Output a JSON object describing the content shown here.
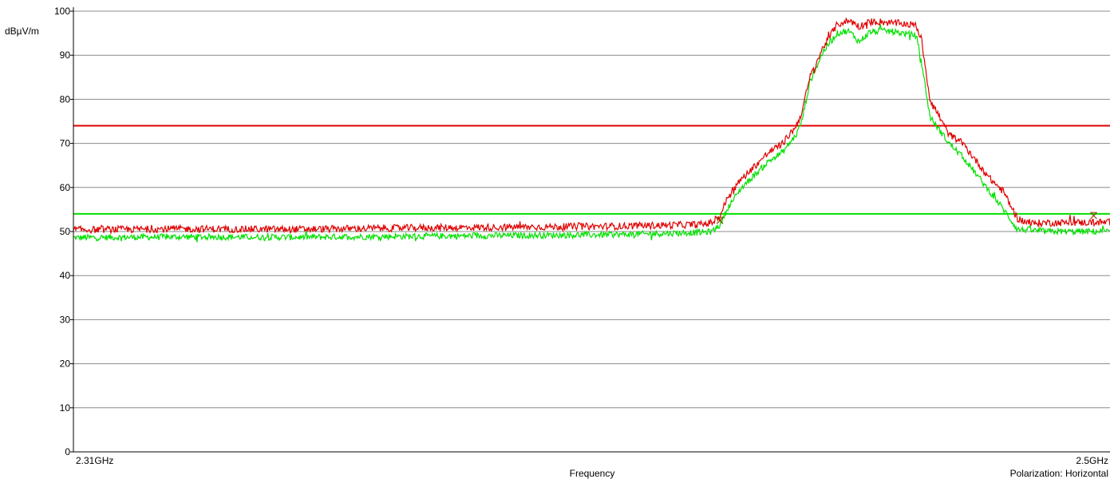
{
  "chart_data": {
    "type": "line",
    "ylabel": "dBµV/m",
    "xlabel": "Frequency",
    "x_start_label": "2.31GHz",
    "x_end_label": "2.5GHz",
    "polarization_label": "Polarization: Horizontal",
    "x_range_ghz": [
      2.31,
      2.5
    ],
    "ylim": [
      0,
      100
    ],
    "yticks": [
      0,
      10,
      20,
      30,
      40,
      50,
      60,
      70,
      80,
      90,
      100
    ],
    "grid": "horizontal",
    "limit_lines": [
      {
        "value": 74,
        "color": "#e00000"
      },
      {
        "value": 54,
        "color": "#00e000"
      }
    ],
    "series": [
      {
        "color": "#e00000",
        "noise": 0.8,
        "x": [
          2.31,
          2.33,
          2.35,
          2.37,
          2.39,
          2.41,
          2.425,
          2.427,
          2.4285,
          2.43,
          2.4325,
          2.435,
          2.4375,
          2.44,
          2.4425,
          2.4435,
          2.445,
          2.4475,
          2.45,
          2.452,
          2.453,
          2.454,
          2.456,
          2.458,
          2.46,
          2.462,
          2.4645,
          2.4655,
          2.467,
          2.4705,
          2.473,
          2.4755,
          2.478,
          2.4805,
          2.483,
          2.4855,
          2.488,
          2.4905,
          2.5
        ],
        "y": [
          50.4,
          50.6,
          50.5,
          50.8,
          51.0,
          51.2,
          51.6,
          52.0,
          53.5,
          58.0,
          62.0,
          65.0,
          68.0,
          70.0,
          74.0,
          77.0,
          85.0,
          92.0,
          97.0,
          97.8,
          97.5,
          96.5,
          97.6,
          97.6,
          97.3,
          97.2,
          96.8,
          93.0,
          80.0,
          72.0,
          70.0,
          66.0,
          62.0,
          59.0,
          53.0,
          51.8,
          52.0,
          52.0,
          52.1
        ]
      },
      {
        "color": "#00e000",
        "noise": 0.7,
        "x": [
          2.31,
          2.33,
          2.35,
          2.37,
          2.39,
          2.41,
          2.425,
          2.427,
          2.4285,
          2.43,
          2.4325,
          2.435,
          2.4375,
          2.44,
          2.4425,
          2.4435,
          2.445,
          2.4475,
          2.45,
          2.452,
          2.453,
          2.454,
          2.456,
          2.458,
          2.46,
          2.462,
          2.4645,
          2.4655,
          2.467,
          2.4705,
          2.473,
          2.4755,
          2.478,
          2.4805,
          2.483,
          2.4855,
          2.488,
          2.4905,
          2.5
        ],
        "y": [
          48.6,
          48.8,
          48.7,
          48.9,
          49.1,
          49.3,
          49.8,
          50.0,
          51.5,
          55.5,
          60.0,
          63.0,
          66.0,
          68.0,
          72.0,
          75.0,
          84.0,
          91.0,
          95.0,
          95.5,
          94.5,
          93.0,
          95.3,
          95.5,
          95.4,
          95.0,
          94.5,
          88.0,
          76.0,
          70.0,
          67.0,
          63.0,
          59.0,
          55.0,
          50.5,
          50.3,
          50.0,
          50.0,
          50.0
        ]
      }
    ],
    "markers": [
      {
        "x": 2.4285,
        "y": 52.5,
        "color": "#9b3a00"
      },
      {
        "x": 2.497,
        "y": 53.6,
        "color": "#9b3a00"
      }
    ]
  }
}
